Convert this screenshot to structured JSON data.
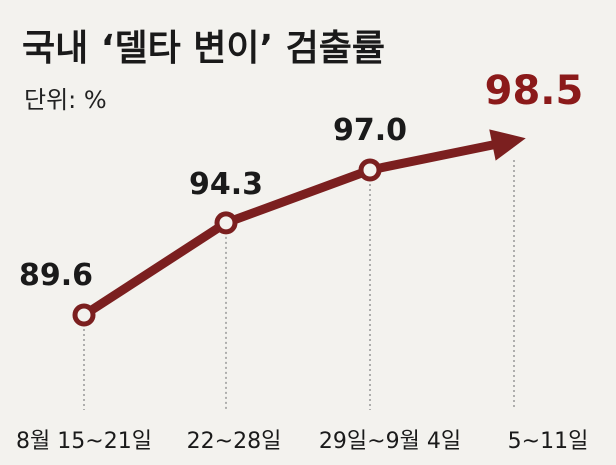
{
  "chart_data": {
    "type": "line",
    "title": "국내 ‘델타 변이’ 검출률",
    "unit_label": "단위: %",
    "categories": [
      "8월 15~21일",
      "22~28일",
      "29일~9월 4일",
      "5~11일"
    ],
    "series": [
      {
        "values": [
          89.6,
          94.3,
          97.0,
          98.5
        ],
        "value_labels": [
          "89.6",
          "94.3",
          "97.0",
          "98.5"
        ]
      }
    ],
    "colors": {
      "line": "#7b1f1f",
      "marker_fill": "#f3f2ee",
      "highlight_label": "#8b1a1a",
      "text": "#1a1a1a",
      "dotted": "#8a8a8a",
      "background": "#f3f2ee"
    },
    "last_point_style": "arrow",
    "grid": false,
    "legend": "none"
  }
}
